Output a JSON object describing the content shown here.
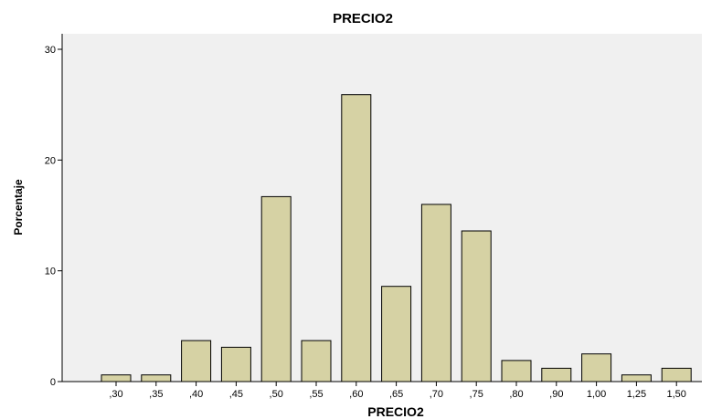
{
  "chart_data": {
    "type": "bar",
    "title": "PRECIO2",
    "xlabel": "PRECIO2",
    "ylabel": "Porcentaje",
    "categories": [
      ",30",
      ",35",
      ",40",
      ",45",
      ",50",
      ",55",
      ",60",
      ",65",
      ",70",
      ",75",
      ",80",
      ",90",
      "1,00",
      "1,25",
      "1,50"
    ],
    "values": [
      0.6,
      0.6,
      3.7,
      3.1,
      16.7,
      3.7,
      25.9,
      8.6,
      16.0,
      13.6,
      1.9,
      1.2,
      2.5,
      0.6,
      1.2
    ],
    "ylim": [
      0,
      30
    ],
    "yticks": [
      0,
      10,
      20,
      30
    ],
    "grid": false,
    "colors": {
      "bar_fill": "#d6d2a4",
      "bar_stroke": "#000000",
      "plot_background": "#f0f0f0"
    }
  }
}
